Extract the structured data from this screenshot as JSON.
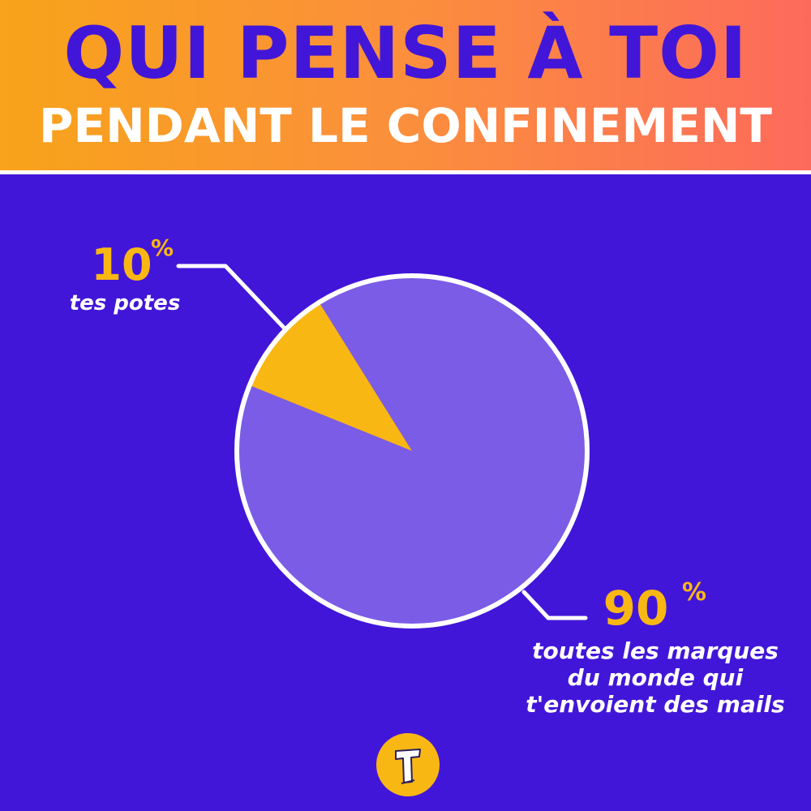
{
  "header": {
    "title": "QUI PENSE À TOI",
    "subtitle": "PENDANT LE CONFINEMENT"
  },
  "colors": {
    "background": "#4216d8",
    "header_gradient_start": "#f8a31a",
    "header_gradient_end": "#fd6a5c",
    "accent_yellow": "#f9b714",
    "pie_main": "#7b5ce6",
    "outline": "#ffffff"
  },
  "chart_data": {
    "type": "pie",
    "title": "QUI PENSE À TOI PENDANT LE CONFINEMENT",
    "slices": [
      {
        "value_label": "10",
        "percent_sign": "%",
        "value": 10,
        "label": "tes potes",
        "color": "#f9b714"
      },
      {
        "value_label": "90",
        "percent_sign": "%",
        "value": 90,
        "label_lines": [
          "toutes les marques",
          "du monde qui",
          "t'envoient des mails"
        ],
        "color": "#7b5ce6"
      }
    ],
    "legend": "none"
  },
  "logo": {
    "icon": "t-letter-logo-icon"
  }
}
